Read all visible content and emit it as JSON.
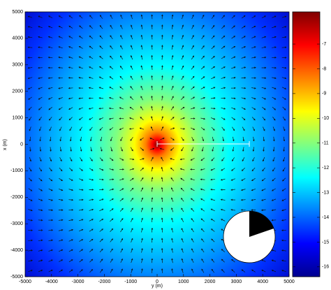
{
  "chart_data": {
    "type": "heatmap",
    "xlabel": "y (m)",
    "ylabel": "x (m)",
    "xlim": [
      -5000,
      5000
    ],
    "ylim": [
      -5000,
      5000
    ],
    "xticks": [
      -5000,
      -4000,
      -3000,
      -2000,
      -1000,
      0,
      1000,
      2000,
      3000,
      4000,
      5000
    ],
    "yticks": [
      -5000,
      -4000,
      -3000,
      -2000,
      -1000,
      0,
      1000,
      2000,
      3000,
      4000,
      5000
    ],
    "colorbar": {
      "clim": [
        -16.4,
        -5.7
      ],
      "ticks": [
        -16,
        -15,
        -14,
        -13,
        -12,
        -11,
        -10,
        -9,
        -8,
        -7
      ],
      "colormap": [
        "#00008f",
        "#0000ff",
        "#0080ff",
        "#00ffff",
        "#80ff80",
        "#ffff00",
        "#ff8000",
        "#ff0000",
        "#800000"
      ]
    }
  }
}
